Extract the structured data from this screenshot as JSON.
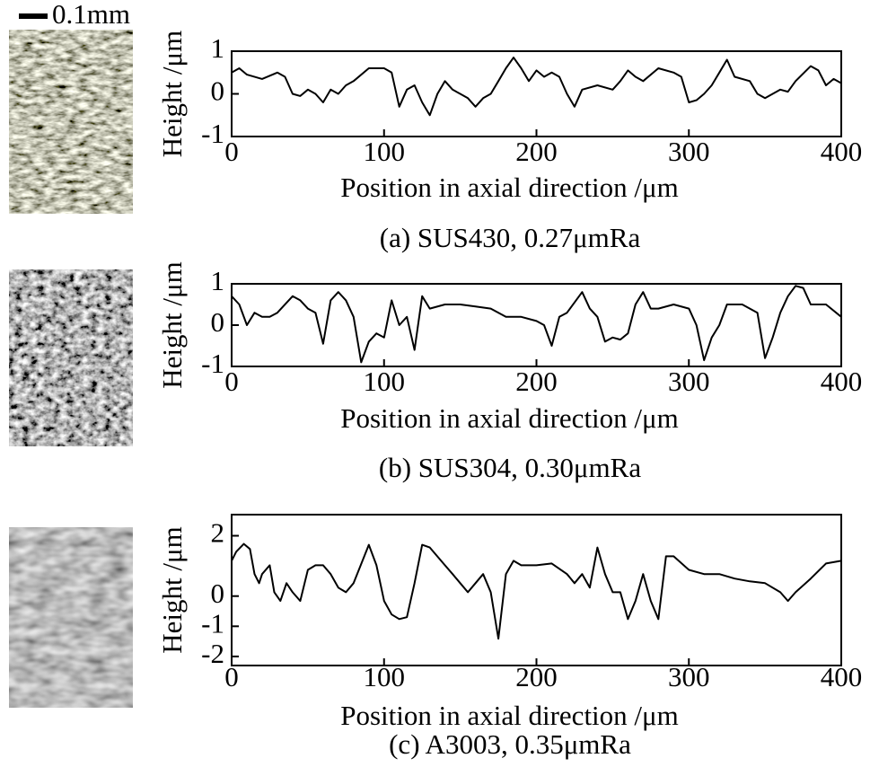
{
  "scale_bar_label": "0.1mm",
  "chart_data": [
    {
      "type": "line",
      "title": "(a) SUS430, 0.27μmRa",
      "x_label": "Position in axial direction /μm",
      "y_label": "Height /μm",
      "color": "#000000",
      "xlim": [
        0,
        400
      ],
      "xticks": [
        0,
        100,
        200,
        300,
        400
      ],
      "ylim": [
        -1,
        1
      ],
      "yticks": [
        -1,
        0,
        1
      ],
      "x": [
        0,
        5,
        10,
        20,
        30,
        35,
        40,
        45,
        50,
        55,
        60,
        65,
        70,
        75,
        80,
        90,
        100,
        105,
        110,
        115,
        120,
        125,
        130,
        135,
        140,
        145,
        150,
        155,
        160,
        165,
        170,
        175,
        180,
        185,
        190,
        195,
        200,
        205,
        210,
        215,
        220,
        225,
        230,
        240,
        250,
        255,
        260,
        265,
        270,
        280,
        290,
        295,
        300,
        305,
        310,
        315,
        320,
        325,
        330,
        340,
        345,
        350,
        360,
        365,
        370,
        380,
        385,
        390,
        395,
        400
      ],
      "values": [
        0.5,
        0.6,
        0.45,
        0.35,
        0.5,
        0.4,
        0.0,
        -0.05,
        0.1,
        0.0,
        -0.2,
        0.1,
        0.0,
        0.2,
        0.3,
        0.6,
        0.6,
        0.5,
        -0.3,
        0.1,
        0.2,
        -0.2,
        -0.5,
        0.0,
        0.3,
        0.1,
        0.0,
        -0.1,
        -0.3,
        -0.1,
        0.0,
        0.3,
        0.6,
        0.85,
        0.6,
        0.3,
        0.55,
        0.4,
        0.5,
        0.4,
        0.0,
        -0.3,
        0.1,
        0.2,
        0.1,
        0.3,
        0.55,
        0.4,
        0.3,
        0.6,
        0.5,
        0.4,
        -0.2,
        -0.15,
        0.0,
        0.2,
        0.5,
        0.8,
        0.4,
        0.3,
        0.0,
        -0.1,
        0.1,
        0.05,
        0.3,
        0.65,
        0.55,
        0.2,
        0.35,
        0.25
      ]
    },
    {
      "type": "line",
      "title": "(b) SUS304, 0.30μmRa",
      "x_label": "Position in axial direction /μm",
      "y_label": "Height /μm",
      "color": "#000000",
      "xlim": [
        0,
        400
      ],
      "xticks": [
        0,
        100,
        200,
        300,
        400
      ],
      "ylim": [
        -1,
        1
      ],
      "yticks": [
        -1,
        0,
        1
      ],
      "x": [
        0,
        5,
        10,
        15,
        20,
        25,
        30,
        40,
        45,
        50,
        55,
        60,
        65,
        70,
        75,
        80,
        85,
        90,
        95,
        100,
        105,
        110,
        115,
        120,
        125,
        130,
        140,
        150,
        160,
        170,
        180,
        190,
        200,
        205,
        210,
        215,
        220,
        230,
        235,
        240,
        245,
        250,
        255,
        260,
        265,
        270,
        275,
        280,
        290,
        300,
        305,
        310,
        315,
        320,
        325,
        335,
        345,
        350,
        355,
        360,
        365,
        370,
        375,
        380,
        390,
        400
      ],
      "values": [
        0.7,
        0.5,
        0.0,
        0.3,
        0.2,
        0.2,
        0.3,
        0.7,
        0.6,
        0.4,
        0.3,
        -0.45,
        0.6,
        0.8,
        0.6,
        0.2,
        -0.9,
        -0.4,
        -0.2,
        -0.3,
        0.6,
        0.0,
        0.2,
        -0.6,
        0.7,
        0.4,
        0.5,
        0.5,
        0.45,
        0.4,
        0.2,
        0.2,
        0.1,
        0.0,
        -0.5,
        0.2,
        0.3,
        0.8,
        0.4,
        0.2,
        -0.4,
        -0.3,
        -0.35,
        -0.2,
        0.5,
        0.8,
        0.4,
        0.4,
        0.5,
        0.4,
        0.0,
        -0.85,
        -0.3,
        0.0,
        0.5,
        0.5,
        0.3,
        -0.8,
        -0.3,
        0.3,
        0.7,
        0.95,
        0.9,
        0.5,
        0.5,
        0.2
      ]
    },
    {
      "type": "line",
      "title": "(c) A3003, 0.35μmRa",
      "x_label": "Position in axial direction  /μm",
      "y_label": "Height /μm",
      "color": "#000000",
      "xlim": [
        0,
        400
      ],
      "xticks": [
        0,
        100,
        200,
        300,
        400
      ],
      "ylim": [
        -2.3,
        2.7
      ],
      "yticks": [
        -2,
        -1,
        0,
        2
      ],
      "x": [
        0,
        3,
        8,
        12,
        15,
        18,
        20,
        25,
        28,
        32,
        36,
        40,
        45,
        50,
        55,
        60,
        65,
        70,
        75,
        80,
        90,
        95,
        100,
        105,
        110,
        115,
        120,
        125,
        130,
        140,
        145,
        150,
        155,
        160,
        165,
        170,
        175,
        180,
        185,
        190,
        200,
        210,
        220,
        225,
        230,
        235,
        240,
        245,
        250,
        255,
        260,
        265,
        270,
        275,
        280,
        285,
        290,
        300,
        310,
        320,
        330,
        340,
        350,
        360,
        365,
        370,
        380,
        390,
        400
      ],
      "values": [
        1.17,
        1.47,
        1.73,
        1.56,
        0.73,
        0.43,
        0.73,
        1.02,
        0.13,
        -0.16,
        0.43,
        0.13,
        -0.16,
        0.87,
        1.02,
        1.02,
        0.73,
        0.28,
        0.13,
        0.43,
        1.7,
        1.02,
        -0.16,
        -0.61,
        -0.76,
        -0.7,
        0.43,
        1.7,
        1.61,
        1.02,
        0.73,
        0.43,
        0.13,
        0.43,
        0.73,
        0.13,
        -1.41,
        0.73,
        1.17,
        1.02,
        1.02,
        1.08,
        0.73,
        0.43,
        0.73,
        0.28,
        1.61,
        0.73,
        0.13,
        0.13,
        -0.76,
        -0.16,
        0.73,
        -0.16,
        -0.76,
        1.32,
        1.32,
        0.87,
        0.73,
        0.73,
        0.58,
        0.49,
        0.43,
        0.13,
        -0.16,
        0.13,
        0.58,
        1.08,
        1.17
      ]
    }
  ]
}
